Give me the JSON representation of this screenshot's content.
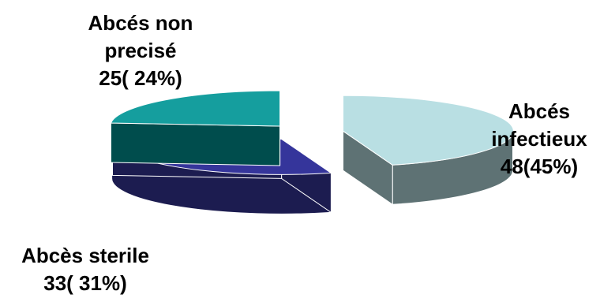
{
  "chart_data": {
    "type": "pie",
    "style": "3d-exploded",
    "slices": [
      {
        "label_lines": [
          "Abcés",
          "infectieux",
          "48(45%)"
        ],
        "value": 48,
        "percent": 45,
        "top_color": "#b9dfe3",
        "side_color": "#5e7274"
      },
      {
        "label_lines": [
          "Abcès sterile",
          "33( 31%)"
        ],
        "value": 33,
        "percent": 31,
        "top_color": "#35359b",
        "side_color": "#1c1c50"
      },
      {
        "label_lines": [
          "Abcés non",
          "precisé",
          "25( 24%)"
        ],
        "value": 25,
        "percent": 24,
        "top_color": "#159e9e",
        "side_color": "#004d4d"
      }
    ]
  }
}
